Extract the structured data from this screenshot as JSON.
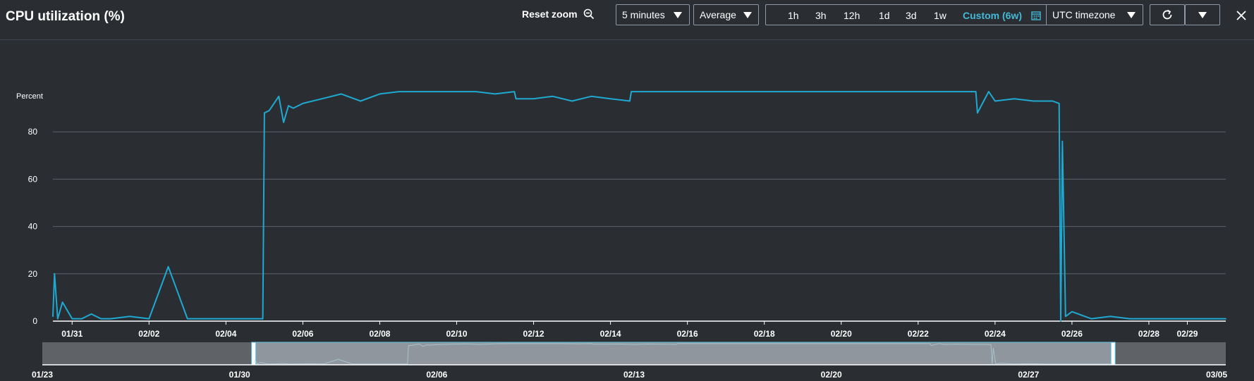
{
  "header": {
    "title": "CPU utilization (%)",
    "reset_zoom_label": "Reset zoom",
    "period": "5 minutes",
    "statistic": "Average",
    "time_ranges": [
      "1h",
      "3h",
      "12h",
      "1d",
      "3d",
      "1w",
      "Custom (6w)"
    ],
    "active_range": "Custom (6w)",
    "timezone": "UTC timezone"
  },
  "icons": {
    "reset_zoom": "zoom-out-icon",
    "custom_range": "calendar-icon",
    "refresh": "refresh-icon",
    "menu": "caret-down-icon",
    "close": "close-icon"
  },
  "colors": {
    "series": "#1fa9d1",
    "accent": "#44b9d6",
    "background": "#2a2e33"
  },
  "chart_data": {
    "type": "line",
    "ylabel": "Percent",
    "ylim": [
      0,
      100
    ],
    "yticks": [
      0,
      20,
      40,
      60,
      80
    ],
    "xlim": [
      "01/30 12:00",
      "03/01 00:00"
    ],
    "xtick_labels": [
      "01/31",
      "02/02",
      "02/04",
      "02/06",
      "02/08",
      "02/10",
      "02/12",
      "02/14",
      "02/16",
      "02/18",
      "02/20",
      "02/22",
      "02/24",
      "02/26",
      "02/28",
      "02/29"
    ],
    "grid": true,
    "series": [
      {
        "values_at": [
          "01/30 12:00",
          "01/30 13:00",
          "01/30 15:00",
          "01/30 18:00",
          "01/31 00:00",
          "01/31 06:00",
          "01/31 12:00",
          "01/31 18:00",
          "02/01 00:00",
          "02/01 12:00",
          "02/02 00:00",
          "02/02 12:00",
          "02/03 00:00",
          "02/03 12:00",
          "02/04 00:00",
          "02/04 12:00",
          "02/04 23:00",
          "02/05 00:00",
          "02/05 03:00",
          "02/05 06:00",
          "02/05 09:00",
          "02/05 12:00",
          "02/05 15:00",
          "02/05 18:00",
          "02/06 00:00",
          "02/06 12:00",
          "02/07 00:00",
          "02/07 12:00",
          "02/08 00:00",
          "02/08 12:00",
          "02/09 00:00",
          "02/09 12:00",
          "02/10 00:00",
          "02/10 12:00",
          "02/11 00:00",
          "02/11 12:00",
          "02/11 13:00",
          "02/12 00:00",
          "02/12 12:00",
          "02/13 00:00",
          "02/13 12:00",
          "02/14 00:00",
          "02/14 12:00",
          "02/14 13:00",
          "02/15 00:00",
          "02/16 00:00",
          "02/17 00:00",
          "02/18 00:00",
          "02/19 00:00",
          "02/20 00:00",
          "02/21 00:00",
          "02/22 00:00",
          "02/23 00:00",
          "02/23 12:00",
          "02/23 13:00",
          "02/23 20:00",
          "02/24 00:00",
          "02/24 12:00",
          "02/25 00:00",
          "02/25 12:00",
          "02/25 16:00",
          "02/25 17:00",
          "02/25 18:00",
          "02/25 20:00",
          "02/26 00:00",
          "02/26 12:00",
          "02/27 00:00",
          "02/27 12:00",
          "02/28 00:00",
          "02/28 12:00",
          "02/29 00:00",
          "02/29 12:00",
          "03/01 00:00"
        ],
        "values": [
          2,
          20,
          1,
          8,
          1,
          1,
          3,
          1,
          1,
          2,
          1,
          23,
          1,
          1,
          1,
          1,
          1,
          88,
          89,
          92,
          95,
          84,
          91,
          90,
          92,
          94,
          96,
          93,
          96,
          97,
          97,
          97,
          97,
          97,
          96,
          97,
          94,
          94,
          95,
          93,
          95,
          94,
          93,
          97,
          97,
          97,
          97,
          97,
          97,
          97,
          97,
          97,
          97,
          97,
          88,
          97,
          93,
          94,
          93,
          93,
          92,
          0,
          76,
          2,
          4,
          1,
          2,
          1,
          1,
          1,
          1,
          1,
          1
        ]
      }
    ],
    "navigator": {
      "xtick_labels": [
        "01/23",
        "01/30",
        "02/06",
        "02/13",
        "02/20",
        "02/27",
        "03/05"
      ],
      "selection": [
        "01/30 12:00",
        "03/01 00:00"
      ]
    }
  }
}
